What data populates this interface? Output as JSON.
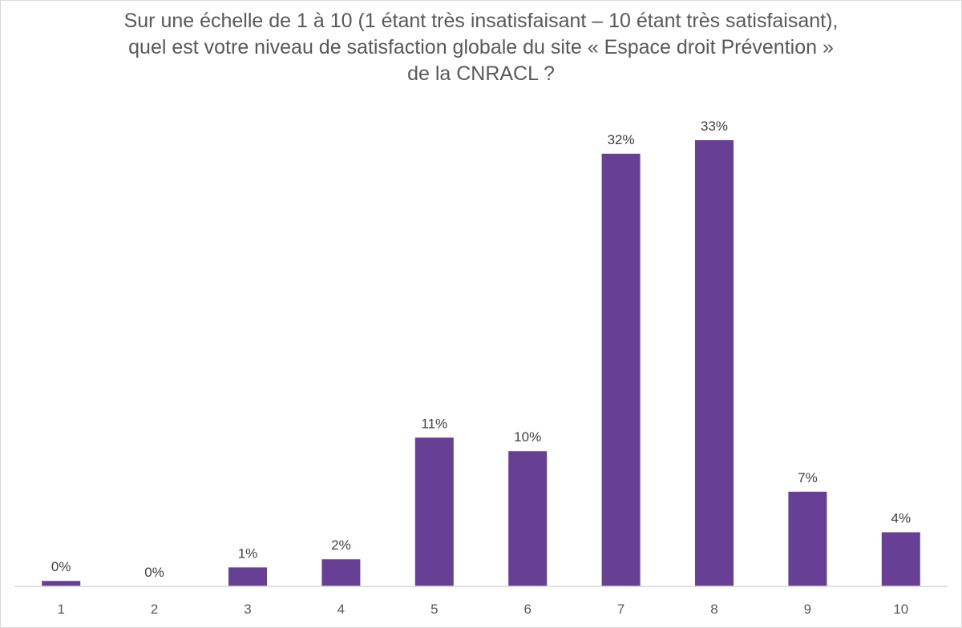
{
  "chart_data": {
    "type": "bar",
    "title": "Sur une échelle de 1 à 10 (1 étant très insatisfaisant – 10 étant très satisfaisant), quel est votre niveau de satisfaction globale du site « Espace droit Prévention » de la CNRACL ?",
    "categories": [
      "1",
      "2",
      "3",
      "4",
      "5",
      "6",
      "7",
      "8",
      "9",
      "10"
    ],
    "values": [
      0.4,
      0,
      1.4,
      2,
      11,
      10,
      32,
      33,
      7,
      4
    ],
    "labels": [
      "0%",
      "0%",
      "1%",
      "2%",
      "11%",
      "10%",
      "32%",
      "33%",
      "7%",
      "4%"
    ],
    "xlabel": "",
    "ylabel": "",
    "ylim": [
      0,
      33
    ],
    "grid": false,
    "legend": "none",
    "bar_color": "#674096"
  }
}
